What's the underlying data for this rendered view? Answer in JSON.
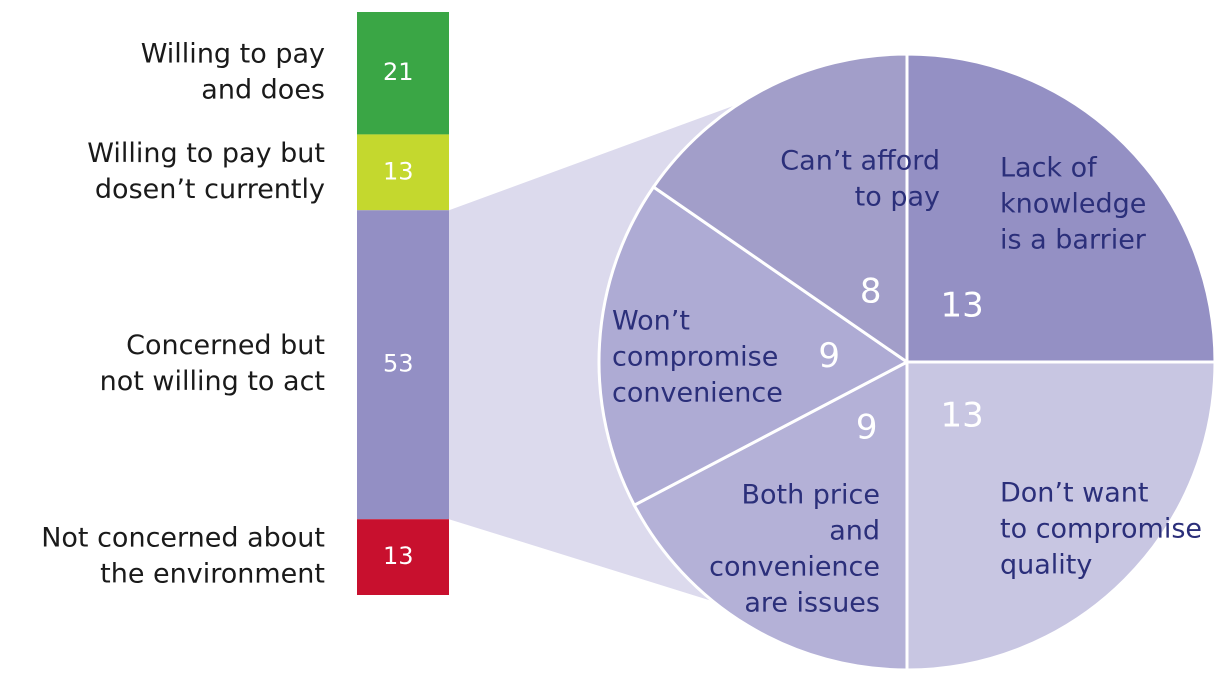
{
  "chart_data": [
    {
      "type": "bar",
      "categories": [
        [
          "Willing to pay",
          "and does"
        ],
        [
          "Willing to pay but",
          "dosen’t currently"
        ],
        [
          "Concerned but",
          "not willing to act"
        ],
        [
          "Not concerned about",
          "the environment"
        ]
      ],
      "values": [
        21,
        13,
        53,
        13
      ],
      "colors": [
        "#3aa645",
        "#c4d82e",
        "#938fc4",
        "#c8102e"
      ]
    },
    {
      "type": "pie",
      "categories": [
        [
          "Lack of",
          "knowledge",
          "is a barrier"
        ],
        [
          "Don’t want",
          "to compromise",
          "quality"
        ],
        [
          "Both price",
          "and",
          "convenience",
          "are issues"
        ],
        [
          "Won’t",
          "compromise",
          "convenience"
        ],
        [
          "Can’t afford",
          "to pay"
        ]
      ],
      "values": [
        13,
        13,
        9,
        9,
        8
      ],
      "colors": [
        "#9490c4",
        "#c8c6e2",
        "#b4b1d7",
        "#aeabd4",
        "#a29ec9"
      ]
    }
  ]
}
